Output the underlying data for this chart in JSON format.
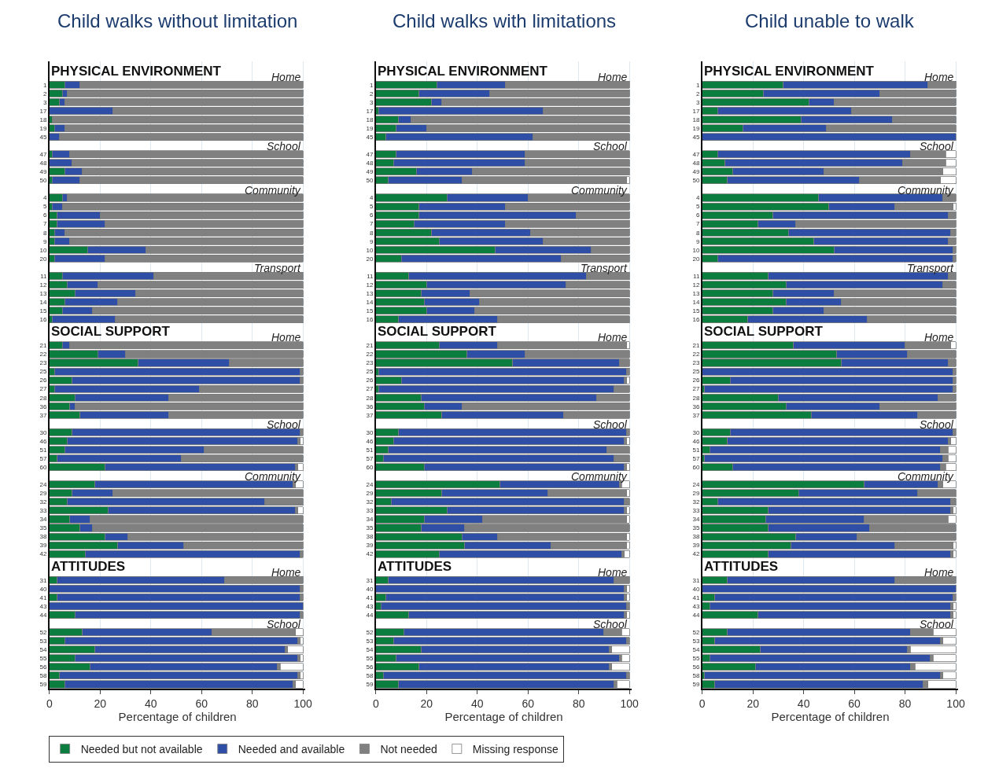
{
  "chart_data": [
    {
      "type": "bar",
      "orientation": "horizontal",
      "stacked": true,
      "title": "Child walks without limitation",
      "xlabel": "Percentage of children",
      "xlim": [
        0,
        101
      ],
      "xticks": [
        0,
        20,
        40,
        60,
        80,
        100
      ],
      "grid": "x",
      "legend": "bottom",
      "categories": [
        null,
        null,
        "1",
        "2",
        "3",
        "17",
        "18",
        "19",
        "45",
        null,
        "47",
        "48",
        "49",
        "50",
        null,
        "4",
        "5",
        "6",
        "7",
        "8",
        "9",
        "10",
        "20",
        null,
        "11",
        "12",
        "13",
        "14",
        "15",
        "16",
        null,
        null,
        "21",
        "22",
        "23",
        "25",
        "26",
        "27",
        "28",
        "36",
        "37",
        null,
        "30",
        "46",
        "51",
        "57",
        "60",
        null,
        "24",
        "29",
        "32",
        "33",
        "34",
        "35",
        "38",
        "39",
        "42",
        null,
        null,
        "31",
        "40",
        "41",
        "43",
        "44",
        null,
        "52",
        "53",
        "54",
        "55",
        "56",
        "58",
        "59"
      ],
      "annotations": [
        "PHYSICAL ENVIRONMENT",
        "Home",
        "School",
        "Community",
        "Transport",
        "SOCIAL SUPPORT",
        "Home",
        "School",
        "Community",
        "ATTITUDES",
        "Home",
        "School"
      ],
      "series": [
        {
          "name": "Needed but not available",
          "color": "#0b7d3e",
          "values": [
            null,
            null,
            6,
            5,
            4,
            0,
            1,
            2,
            0,
            null,
            1,
            0,
            6,
            1,
            null,
            5,
            1,
            3,
            3,
            2,
            2,
            15,
            2,
            null,
            5,
            7,
            10,
            6,
            5,
            1,
            null,
            null,
            5,
            19,
            35,
            2,
            9,
            2,
            10,
            8,
            12,
            null,
            9,
            7,
            6,
            3,
            22,
            null,
            18,
            9,
            7,
            23,
            8,
            12,
            22,
            27,
            14,
            null,
            null,
            3,
            0,
            3,
            0,
            10,
            null,
            13,
            6,
            18,
            10,
            16,
            4,
            6
          ]
        },
        {
          "name": "Needed and available",
          "color": "#2f4fa6",
          "values": [
            null,
            null,
            6,
            2,
            2,
            25,
            0,
            4,
            4,
            null,
            7,
            9,
            7,
            11,
            null,
            2,
            4,
            17,
            19,
            4,
            6,
            23,
            20,
            null,
            36,
            12,
            24,
            21,
            12,
            25,
            null,
            null,
            3,
            11,
            36,
            97,
            90,
            57,
            37,
            2,
            35,
            null,
            90,
            91,
            55,
            49,
            75,
            null,
            78,
            16,
            78,
            74,
            8,
            5,
            9,
            26,
            85,
            null,
            null,
            66,
            99,
            96,
            100,
            89,
            null,
            51,
            92,
            75,
            88,
            74,
            94,
            90
          ]
        },
        {
          "name": "Not needed",
          "color": "#808080",
          "values": [
            null,
            null,
            88,
            93,
            94,
            75,
            99,
            94,
            96,
            null,
            92,
            91,
            87,
            88,
            null,
            93,
            95,
            80,
            78,
            94,
            92,
            62,
            78,
            null,
            59,
            81,
            66,
            73,
            83,
            74,
            null,
            null,
            92,
            70,
            29,
            1,
            1,
            41,
            53,
            90,
            53,
            null,
            1,
            1,
            39,
            48,
            1,
            null,
            1,
            75,
            15,
            1,
            84,
            83,
            69,
            47,
            1,
            null,
            null,
            31,
            1,
            1,
            0,
            1,
            null,
            33,
            1,
            1,
            1,
            1,
            1,
            1
          ]
        },
        {
          "name": "Missing response",
          "color": "#ffffff",
          "values": [
            null,
            null,
            0,
            0,
            0,
            0,
            0,
            0,
            0,
            null,
            0,
            0,
            0,
            0,
            null,
            0,
            0,
            0,
            0,
            0,
            0,
            0,
            0,
            null,
            0,
            0,
            0,
            0,
            0,
            0,
            null,
            null,
            0,
            0,
            0,
            0,
            0,
            0,
            0,
            0,
            0,
            null,
            0,
            1,
            0,
            0,
            2,
            null,
            3,
            0,
            0,
            2,
            0,
            0,
            0,
            0,
            0,
            null,
            null,
            0,
            0,
            0,
            0,
            0,
            null,
            3,
            1,
            6,
            1,
            9,
            1,
            3
          ]
        }
      ]
    },
    {
      "type": "bar",
      "orientation": "horizontal",
      "stacked": true,
      "title": "Child walks with limitations",
      "xlabel": "Percentage of children",
      "xlim": [
        0,
        101
      ],
      "xticks": [
        0,
        20,
        40,
        60,
        80,
        100
      ],
      "grid": "x",
      "categories": [
        null,
        null,
        "1",
        "2",
        "3",
        "17",
        "18",
        "19",
        "45",
        null,
        "47",
        "48",
        "49",
        "50",
        null,
        "4",
        "5",
        "6",
        "7",
        "8",
        "9",
        "10",
        "20",
        null,
        "11",
        "12",
        "13",
        "14",
        "15",
        "16",
        null,
        null,
        "21",
        "22",
        "23",
        "25",
        "26",
        "27",
        "28",
        "36",
        "37",
        null,
        "30",
        "46",
        "51",
        "57",
        "60",
        null,
        "24",
        "29",
        "32",
        "33",
        "34",
        "35",
        "38",
        "39",
        "42",
        null,
        null,
        "31",
        "40",
        "41",
        "43",
        "44",
        null,
        "52",
        "53",
        "54",
        "55",
        "56",
        "58",
        "59"
      ],
      "annotations": [
        "PHYSICAL ENVIRONMENT",
        "Home",
        "School",
        "Community",
        "Transport",
        "SOCIAL SUPPORT",
        "Home",
        "School",
        "Community",
        "ATTITUDES",
        "Home",
        "School"
      ],
      "series": [
        {
          "color": "#0b7d3e",
          "values": [
            null,
            null,
            24,
            17,
            22,
            1,
            9,
            8,
            4,
            null,
            8,
            7,
            16,
            5,
            null,
            28,
            17,
            17,
            15,
            22,
            25,
            47,
            10,
            null,
            13,
            20,
            18,
            19,
            20,
            9,
            null,
            null,
            25,
            36,
            54,
            1,
            10,
            1,
            18,
            19,
            26,
            null,
            9,
            7,
            5,
            3,
            19,
            null,
            49,
            26,
            6,
            28,
            19,
            18,
            34,
            35,
            25,
            null,
            null,
            5,
            0,
            4,
            2,
            13,
            null,
            11,
            7,
            18,
            8,
            17,
            3,
            9
          ]
        },
        {
          "color": "#2f4fa6",
          "values": [
            null,
            null,
            27,
            28,
            4,
            65,
            5,
            12,
            58,
            null,
            51,
            52,
            22,
            29,
            null,
            32,
            34,
            62,
            36,
            39,
            41,
            38,
            63,
            null,
            70,
            55,
            19,
            22,
            19,
            39,
            null,
            null,
            23,
            23,
            42,
            98,
            88,
            93,
            69,
            15,
            48,
            null,
            90,
            91,
            86,
            91,
            79,
            null,
            47,
            42,
            92,
            70,
            23,
            17,
            14,
            34,
            72,
            null,
            null,
            89,
            98,
            94,
            97,
            85,
            null,
            79,
            92,
            74,
            88,
            75,
            96,
            85
          ]
        },
        {
          "color": "#808080",
          "values": [
            null,
            null,
            49,
            55,
            74,
            34,
            86,
            80,
            38,
            null,
            41,
            41,
            62,
            65,
            null,
            40,
            49,
            21,
            49,
            39,
            34,
            15,
            27,
            null,
            17,
            25,
            63,
            59,
            61,
            52,
            null,
            null,
            51,
            41,
            4,
            1,
            1,
            6,
            13,
            66,
            26,
            null,
            1,
            1,
            9,
            6,
            1,
            null,
            1,
            31,
            2,
            1,
            57,
            65,
            51,
            30,
            1,
            null,
            null,
            6,
            1,
            1,
            1,
            1,
            null,
            7,
            1,
            1,
            1,
            1,
            1,
            1
          ]
        },
        {
          "color": "#ffffff",
          "values": [
            null,
            null,
            0,
            0,
            0,
            0,
            0,
            0,
            0,
            null,
            0,
            0,
            0,
            1,
            null,
            0,
            0,
            0,
            0,
            0,
            0,
            0,
            0,
            null,
            0,
            0,
            0,
            0,
            0,
            0,
            null,
            null,
            1,
            0,
            0,
            0,
            1,
            0,
            0,
            0,
            0,
            null,
            0,
            1,
            0,
            0,
            1,
            null,
            3,
            1,
            0,
            1,
            1,
            0,
            1,
            1,
            2,
            null,
            null,
            0,
            1,
            1,
            0,
            1,
            null,
            3,
            0,
            7,
            3,
            7,
            0,
            5
          ]
        }
      ]
    },
    {
      "type": "bar",
      "orientation": "horizontal",
      "stacked": true,
      "title": "Child unable to walk",
      "xlabel": "Percentage of children",
      "xlim": [
        0,
        101
      ],
      "xticks": [
        0,
        20,
        40,
        60,
        80,
        100
      ],
      "grid": "x",
      "categories": [
        null,
        null,
        "1",
        "2",
        "3",
        "17",
        "18",
        "19",
        "45",
        null,
        "47",
        "48",
        "49",
        "50",
        null,
        "4",
        "5",
        "6",
        "7",
        "8",
        "9",
        "10",
        "20",
        null,
        "11",
        "12",
        "13",
        "14",
        "15",
        "16",
        null,
        null,
        "21",
        "22",
        "23",
        "25",
        "26",
        "27",
        "28",
        "36",
        "37",
        null,
        "30",
        "46",
        "51",
        "57",
        "60",
        null,
        "24",
        "29",
        "32",
        "33",
        "34",
        "35",
        "38",
        "39",
        "42",
        null,
        null,
        "31",
        "40",
        "41",
        "43",
        "44",
        null,
        "52",
        "53",
        "54",
        "55",
        "56",
        "58",
        "59"
      ],
      "annotations": [
        "PHYSICAL ENVIRONMENT",
        "Home",
        "School",
        "Community",
        "Transport",
        "SOCIAL SUPPORT",
        "Home",
        "School",
        "Community",
        "ATTITUDES",
        "Home",
        "School"
      ],
      "series": [
        {
          "color": "#0b7d3e",
          "values": [
            null,
            null,
            32,
            24,
            42,
            6,
            39,
            16,
            0,
            null,
            6,
            9,
            12,
            10,
            null,
            46,
            50,
            28,
            22,
            34,
            44,
            52,
            6,
            null,
            26,
            33,
            28,
            33,
            28,
            18,
            null,
            null,
            36,
            53,
            55,
            0,
            11,
            1,
            30,
            33,
            43,
            null,
            11,
            10,
            3,
            1,
            12,
            null,
            64,
            38,
            6,
            26,
            25,
            26,
            37,
            35,
            26,
            null,
            null,
            10,
            0,
            5,
            3,
            22,
            null,
            10,
            5,
            23,
            3,
            21,
            1,
            5
          ]
        },
        {
          "color": "#2f4fa6",
          "values": [
            null,
            null,
            57,
            46,
            10,
            53,
            36,
            33,
            100,
            null,
            76,
            70,
            36,
            52,
            null,
            49,
            26,
            69,
            15,
            64,
            53,
            47,
            93,
            null,
            71,
            62,
            24,
            22,
            20,
            47,
            null,
            null,
            44,
            28,
            42,
            99,
            88,
            98,
            63,
            37,
            42,
            null,
            88,
            87,
            91,
            94,
            82,
            null,
            29,
            47,
            92,
            72,
            39,
            40,
            24,
            41,
            72,
            null,
            null,
            66,
            100,
            94,
            95,
            76,
            null,
            72,
            89,
            58,
            87,
            61,
            93,
            82
          ]
        },
        {
          "color": "#808080",
          "values": [
            null,
            null,
            11,
            30,
            48,
            41,
            25,
            51,
            0,
            null,
            14,
            17,
            47,
            32,
            null,
            5,
            23,
            3,
            63,
            2,
            3,
            1,
            1,
            null,
            3,
            5,
            48,
            45,
            52,
            35,
            null,
            null,
            18,
            19,
            3,
            1,
            1,
            1,
            7,
            30,
            15,
            null,
            1,
            1,
            3,
            2,
            2,
            null,
            2,
            15,
            2,
            1,
            33,
            34,
            39,
            23,
            1,
            null,
            null,
            24,
            0,
            1,
            1,
            1,
            null,
            9,
            1,
            1,
            1,
            2,
            1,
            2
          ]
        },
        {
          "color": "#ffffff",
          "values": [
            null,
            null,
            0,
            0,
            0,
            0,
            0,
            0,
            0,
            null,
            4,
            4,
            5,
            6,
            null,
            0,
            1,
            0,
            0,
            0,
            0,
            0,
            0,
            null,
            0,
            0,
            0,
            0,
            0,
            0,
            null,
            null,
            2,
            0,
            0,
            0,
            0,
            0,
            0,
            0,
            0,
            null,
            0,
            2,
            3,
            3,
            4,
            null,
            5,
            0,
            0,
            1,
            3,
            0,
            0,
            1,
            1,
            null,
            null,
            0,
            0,
            0,
            1,
            1,
            null,
            9,
            5,
            18,
            9,
            16,
            5,
            11
          ]
        }
      ]
    }
  ]
}
